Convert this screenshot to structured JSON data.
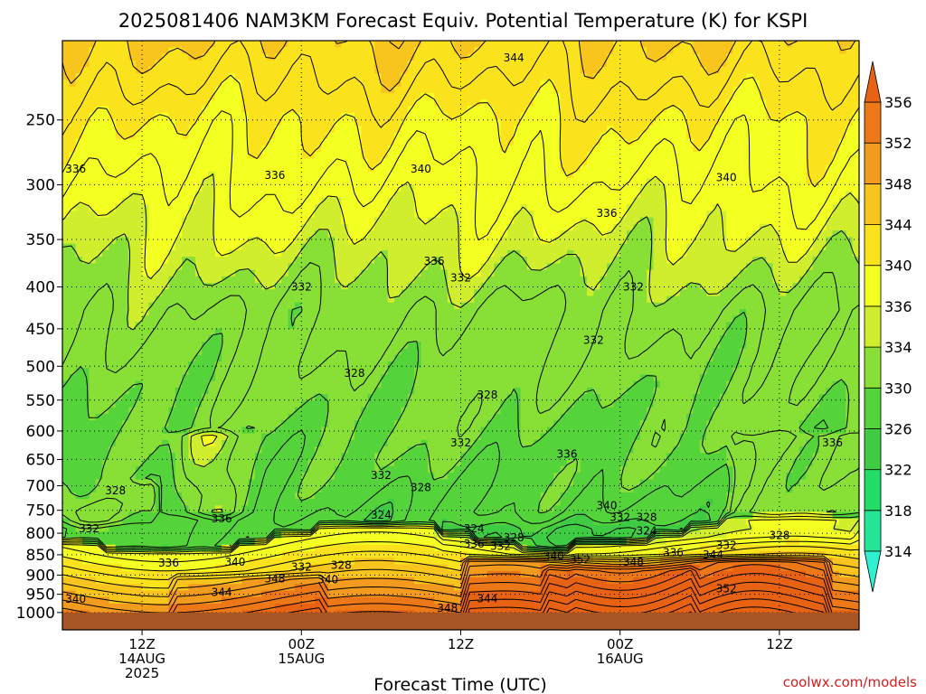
{
  "chart_data": {
    "type": "heatmap",
    "title": "2025081406 NAM3KM Forecast Equiv. Potential Temperature (K) for KSPI",
    "xlabel": "Forecast Time (UTC)",
    "ylabel": "",
    "credit": "coolwx.com/models",
    "y_scale": "log-pressure",
    "y_ticks": [
      250,
      300,
      350,
      400,
      450,
      500,
      550,
      600,
      650,
      700,
      750,
      800,
      850,
      900,
      950,
      1000
    ],
    "y_range_hPa": [
      200,
      1050
    ],
    "x_ticks": [
      {
        "line1": "12Z",
        "line2": "14AUG",
        "line3": "2025",
        "hour": 6
      },
      {
        "line1": "00Z",
        "line2": "15AUG",
        "line3": "",
        "hour": 18
      },
      {
        "line1": "12Z",
        "line2": "",
        "line3": "",
        "hour": 30
      },
      {
        "line1": "00Z",
        "line2": "16AUG",
        "line3": "",
        "hour": 42
      },
      {
        "line1": "12Z",
        "line2": "",
        "line3": "",
        "hour": 54
      }
    ],
    "x_range_hours": [
      0,
      60
    ],
    "grid": true,
    "colorbar": {
      "levels": [
        314,
        318,
        322,
        326,
        330,
        334,
        336,
        340,
        344,
        348,
        352,
        356
      ],
      "colors": [
        "#30f0d2",
        "#24e696",
        "#22dd66",
        "#3fcb44",
        "#54d43a",
        "#88df36",
        "#d0ee2e",
        "#f4ff22",
        "#fae21c",
        "#f7c51d",
        "#f29b1e",
        "#ed7818",
        "#e86214"
      ],
      "extend": "both"
    },
    "ground_color": "#a65523",
    "contour_labels": [
      {
        "text": "344",
        "hour": 34,
        "p": 210
      },
      {
        "text": "336",
        "hour": 1,
        "p": 287
      },
      {
        "text": "336",
        "hour": 16,
        "p": 292
      },
      {
        "text": "340",
        "hour": 27,
        "p": 287
      },
      {
        "text": "340",
        "hour": 50,
        "p": 294
      },
      {
        "text": "336",
        "hour": 41,
        "p": 325
      },
      {
        "text": "336",
        "hour": 28,
        "p": 372
      },
      {
        "text": "332",
        "hour": 30,
        "p": 390
      },
      {
        "text": "332",
        "hour": 18,
        "p": 400
      },
      {
        "text": "332",
        "hour": 43,
        "p": 400
      },
      {
        "text": "332",
        "hour": 40,
        "p": 465
      },
      {
        "text": "328",
        "hour": 22,
        "p": 510
      },
      {
        "text": "328",
        "hour": 32,
        "p": 542
      },
      {
        "text": "336",
        "hour": 58,
        "p": 620
      },
      {
        "text": "332",
        "hour": 30,
        "p": 620
      },
      {
        "text": "336",
        "hour": 38,
        "p": 640
      },
      {
        "text": "332",
        "hour": 24,
        "p": 680
      },
      {
        "text": "328",
        "hour": 27,
        "p": 703
      },
      {
        "text": "328",
        "hour": 4,
        "p": 710
      },
      {
        "text": "340",
        "hour": 41,
        "p": 740
      },
      {
        "text": "336",
        "hour": 12,
        "p": 768
      },
      {
        "text": "324",
        "hour": 24,
        "p": 760
      },
      {
        "text": "332",
        "hour": 42,
        "p": 765
      },
      {
        "text": "328",
        "hour": 44,
        "p": 765
      },
      {
        "text": "332",
        "hour": 2,
        "p": 790
      },
      {
        "text": "324",
        "hour": 31,
        "p": 790
      },
      {
        "text": "324",
        "hour": 44,
        "p": 795
      },
      {
        "text": "328",
        "hour": 34,
        "p": 810
      },
      {
        "text": "336",
        "hour": 31,
        "p": 825
      },
      {
        "text": "332",
        "hour": 33,
        "p": 830
      },
      {
        "text": "332",
        "hour": 50,
        "p": 828
      },
      {
        "text": "328",
        "hour": 54,
        "p": 805
      },
      {
        "text": "340",
        "hour": 37,
        "p": 853
      },
      {
        "text": "336",
        "hour": 46,
        "p": 845
      },
      {
        "text": "344",
        "hour": 49,
        "p": 850
      },
      {
        "text": "352",
        "hour": 39,
        "p": 862
      },
      {
        "text": "348",
        "hour": 43,
        "p": 868
      },
      {
        "text": "340",
        "hour": 13,
        "p": 868
      },
      {
        "text": "336",
        "hour": 8,
        "p": 870
      },
      {
        "text": "332",
        "hour": 18,
        "p": 880
      },
      {
        "text": "328",
        "hour": 21,
        "p": 875
      },
      {
        "text": "348",
        "hour": 16,
        "p": 910
      },
      {
        "text": "340",
        "hour": 20,
        "p": 912
      },
      {
        "text": "344",
        "hour": 12,
        "p": 945
      },
      {
        "text": "340",
        "hour": 1,
        "p": 963
      },
      {
        "text": "352",
        "hour": 50,
        "p": 935
      },
      {
        "text": "344",
        "hour": 32,
        "p": 962
      },
      {
        "text": "348",
        "hour": 29,
        "p": 988
      }
    ]
  }
}
